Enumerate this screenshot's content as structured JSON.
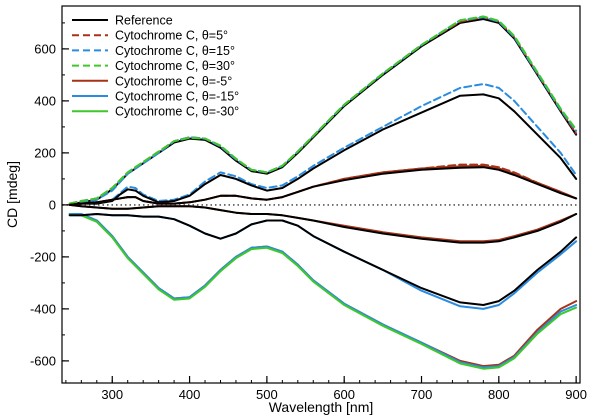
{
  "chart_data": {
    "type": "line",
    "xlabel": "Wavelength [nm]",
    "ylabel": "CD [mdeg]",
    "xlim": [
      235,
      905
    ],
    "ylim": [
      -685,
      765
    ],
    "xticks": [
      300,
      400,
      500,
      600,
      700,
      800,
      900
    ],
    "yticks": [
      -600,
      -400,
      -200,
      0,
      200,
      400,
      600
    ],
    "x_minor_step": 20,
    "y_minor_step": 100,
    "grid": false,
    "zero_line": {
      "y": 0,
      "style": "dotted",
      "color": "#555555"
    },
    "legend_position": "top-left",
    "series": [
      {
        "name": "Reference",
        "color": "#000000",
        "dash": "solid",
        "x": [
          245,
          260,
          280,
          300,
          320,
          340,
          360,
          380,
          400,
          420,
          440,
          460,
          480,
          500,
          520,
          540,
          560,
          600,
          650,
          700,
          750,
          780,
          800,
          820,
          850,
          880,
          900
        ],
        "y": [
          0,
          10,
          20,
          60,
          120,
          160,
          200,
          240,
          255,
          250,
          220,
          170,
          130,
          120,
          145,
          200,
          260,
          380,
          500,
          610,
          700,
          715,
          700,
          640,
          500,
          360,
          270
        ]
      },
      {
        "name": "Cytochrome C, θ=5°",
        "color": "#a83218",
        "dash": "dashed",
        "x": [
          245,
          260,
          280,
          300,
          320,
          340,
          360,
          380,
          400,
          420,
          440,
          460,
          480,
          500,
          520,
          540,
          560,
          600,
          650,
          700,
          750,
          780,
          800,
          820,
          850,
          880,
          900
        ],
        "y": [
          5,
          15,
          25,
          65,
          125,
          165,
          205,
          245,
          260,
          255,
          225,
          175,
          135,
          125,
          150,
          205,
          265,
          385,
          505,
          615,
          705,
          722,
          705,
          645,
          505,
          365,
          275
        ]
      },
      {
        "name": "Cytochrome C, θ=15°",
        "color": "#2a8ce0",
        "dash": "dashed",
        "x": [
          245,
          260,
          280,
          300,
          320,
          340,
          360,
          380,
          400,
          420,
          440,
          460,
          480,
          500,
          520,
          540,
          560,
          600,
          650,
          700,
          750,
          780,
          800,
          820,
          850,
          880,
          900
        ],
        "y": [
          0,
          10,
          20,
          55,
          120,
          160,
          200,
          245,
          260,
          255,
          225,
          175,
          135,
          125,
          150,
          205,
          265,
          385,
          505,
          615,
          710,
          722,
          705,
          645,
          505,
          365,
          285
        ]
      },
      {
        "name": "Cytochrome C, θ=30°",
        "color": "#3ec82a",
        "dash": "dashed",
        "x": [
          245,
          260,
          280,
          300,
          320,
          340,
          360,
          380,
          400,
          420,
          440,
          460,
          480,
          500,
          520,
          540,
          560,
          600,
          650,
          700,
          750,
          780,
          800,
          820,
          850,
          880,
          900
        ],
        "y": [
          5,
          15,
          25,
          65,
          125,
          165,
          205,
          245,
          258,
          255,
          228,
          178,
          135,
          125,
          150,
          205,
          265,
          385,
          505,
          615,
          710,
          725,
          708,
          650,
          510,
          370,
          290
        ]
      },
      {
        "name": "Cytochrome C, θ=-5°",
        "color": "#a83218",
        "dash": "solid",
        "x": [
          245,
          260,
          280,
          300,
          320,
          340,
          360,
          380,
          400,
          420,
          440,
          460,
          480,
          500,
          520,
          540,
          560,
          600,
          650,
          700,
          750,
          780,
          800,
          820,
          850,
          880,
          900
        ],
        "y": [
          -35,
          -35,
          -60,
          -120,
          -200,
          -260,
          -320,
          -360,
          -355,
          -310,
          -250,
          -200,
          -165,
          -160,
          -180,
          -230,
          -290,
          -380,
          -460,
          -530,
          -600,
          -620,
          -615,
          -580,
          -480,
          -400,
          -370
        ]
      },
      {
        "name": "Cytochrome C, θ=-15°",
        "color": "#2a8ce0",
        "dash": "solid",
        "x": [
          245,
          260,
          280,
          300,
          320,
          340,
          360,
          380,
          400,
          420,
          440,
          460,
          480,
          500,
          520,
          540,
          560,
          600,
          650,
          700,
          750,
          780,
          800,
          820,
          850,
          880,
          900
        ],
        "y": [
          -35,
          -35,
          -60,
          -120,
          -200,
          -260,
          -320,
          -360,
          -355,
          -310,
          -250,
          -200,
          -165,
          -160,
          -180,
          -230,
          -290,
          -380,
          -460,
          -530,
          -605,
          -625,
          -620,
          -585,
          -490,
          -410,
          -385
        ]
      },
      {
        "name": "Cytochrome C, θ=-30°",
        "color": "#3ec82a",
        "dash": "solid",
        "x": [
          245,
          260,
          280,
          300,
          320,
          340,
          360,
          380,
          400,
          420,
          440,
          460,
          480,
          500,
          520,
          540,
          560,
          600,
          650,
          700,
          750,
          780,
          800,
          820,
          850,
          880,
          900
        ],
        "y": [
          -38,
          -40,
          -65,
          -125,
          -205,
          -265,
          -325,
          -365,
          -360,
          -315,
          -255,
          -205,
          -170,
          -165,
          -185,
          -235,
          -295,
          -385,
          -465,
          -535,
          -610,
          -630,
          -625,
          -590,
          -495,
          -420,
          -395
        ]
      },
      {
        "name": "",
        "color": "#2a8ce0",
        "dash": "dashed",
        "x": [
          245,
          260,
          280,
          300,
          310,
          320,
          330,
          340,
          360,
          380,
          400,
          420,
          440,
          460,
          480,
          500,
          520,
          540,
          560,
          600,
          650,
          700,
          750,
          780,
          800,
          820,
          850,
          880,
          900
        ],
        "y": [
          0,
          5,
          5,
          20,
          45,
          70,
          65,
          40,
          15,
          20,
          40,
          90,
          125,
          110,
          80,
          65,
          75,
          110,
          150,
          220,
          300,
          380,
          450,
          465,
          450,
          400,
          300,
          200,
          115
        ]
      },
      {
        "name": "",
        "color": "#000000",
        "dash": "solid",
        "x": [
          245,
          260,
          280,
          300,
          310,
          320,
          330,
          340,
          360,
          380,
          400,
          420,
          440,
          460,
          480,
          500,
          520,
          540,
          560,
          600,
          650,
          700,
          750,
          780,
          800,
          820,
          850,
          880,
          900
        ],
        "y": [
          0,
          5,
          5,
          15,
          40,
          60,
          55,
          35,
          10,
          15,
          35,
          80,
          115,
          100,
          75,
          55,
          65,
          100,
          140,
          210,
          290,
          355,
          420,
          425,
          410,
          360,
          270,
          180,
          100
        ]
      },
      {
        "name": "",
        "color": "#2a8ce0",
        "dash": "solid",
        "x": [
          245,
          260,
          280,
          300,
          320,
          340,
          360,
          380,
          400,
          420,
          440,
          460,
          480,
          500,
          520,
          540,
          560,
          600,
          650,
          700,
          750,
          780,
          800,
          820,
          850,
          880,
          900
        ],
        "y": [
          -40,
          -40,
          -35,
          -40,
          -40,
          -45,
          -45,
          -55,
          -80,
          -110,
          -130,
          -110,
          -75,
          -60,
          -60,
          -80,
          -120,
          -180,
          -250,
          -330,
          -390,
          -400,
          -385,
          -340,
          -260,
          -190,
          -140
        ]
      },
      {
        "name": "",
        "color": "#000000",
        "dash": "solid",
        "x": [
          245,
          260,
          280,
          300,
          320,
          340,
          360,
          380,
          400,
          420,
          440,
          460,
          480,
          500,
          520,
          540,
          560,
          600,
          650,
          700,
          750,
          780,
          800,
          820,
          850,
          880,
          900
        ],
        "y": [
          -40,
          -40,
          -35,
          -40,
          -40,
          -45,
          -45,
          -55,
          -80,
          -110,
          -130,
          -110,
          -75,
          -60,
          -60,
          -80,
          -120,
          -180,
          -250,
          -320,
          -375,
          -385,
          -370,
          -330,
          -250,
          -180,
          -125
        ]
      },
      {
        "name": "",
        "color": "#a83218",
        "dash": "dashed",
        "x": [
          245,
          260,
          280,
          300,
          320,
          330,
          340,
          360,
          380,
          400,
          420,
          440,
          460,
          480,
          500,
          520,
          540,
          560,
          600,
          650,
          700,
          750,
          780,
          800,
          820,
          850,
          880,
          900
        ],
        "y": [
          0,
          5,
          10,
          20,
          30,
          30,
          15,
          5,
          5,
          10,
          20,
          35,
          35,
          25,
          20,
          30,
          50,
          70,
          100,
          125,
          140,
          155,
          155,
          145,
          125,
          85,
          50,
          25
        ]
      },
      {
        "name": "",
        "color": "#a83218",
        "dash": "solid",
        "x": [
          245,
          260,
          280,
          300,
          320,
          330,
          340,
          360,
          380,
          400,
          420,
          440,
          460,
          480,
          500,
          520,
          540,
          560,
          600,
          650,
          700,
          750,
          780,
          800,
          820,
          850,
          880,
          900
        ],
        "y": [
          0,
          5,
          10,
          20,
          30,
          30,
          15,
          5,
          5,
          10,
          20,
          35,
          35,
          25,
          20,
          30,
          50,
          70,
          100,
          125,
          140,
          148,
          150,
          140,
          120,
          85,
          50,
          25
        ]
      },
      {
        "name": "",
        "color": "#000000",
        "dash": "solid",
        "x": [
          245,
          260,
          280,
          300,
          320,
          330,
          340,
          360,
          380,
          400,
          420,
          440,
          460,
          480,
          500,
          520,
          540,
          560,
          600,
          650,
          700,
          750,
          780,
          800,
          820,
          850,
          880,
          900
        ],
        "y": [
          0,
          5,
          10,
          20,
          30,
          30,
          15,
          5,
          5,
          10,
          20,
          35,
          35,
          25,
          20,
          30,
          50,
          70,
          95,
          120,
          135,
          143,
          145,
          135,
          115,
          80,
          45,
          25
        ]
      },
      {
        "name": "",
        "color": "#a83218",
        "dash": "solid",
        "x": [
          245,
          260,
          280,
          300,
          320,
          340,
          360,
          380,
          400,
          420,
          440,
          460,
          480,
          500,
          520,
          540,
          560,
          600,
          650,
          700,
          750,
          780,
          800,
          820,
          850,
          880,
          900
        ],
        "y": [
          0,
          -5,
          -10,
          -15,
          -15,
          -10,
          -5,
          -5,
          -5,
          -10,
          -20,
          -30,
          -35,
          -35,
          -40,
          -50,
          -60,
          -80,
          -105,
          -125,
          -140,
          -140,
          -135,
          -120,
          -95,
          -60,
          -35
        ]
      },
      {
        "name": "",
        "color": "#000000",
        "dash": "solid",
        "x": [
          245,
          260,
          280,
          300,
          320,
          340,
          360,
          380,
          400,
          420,
          440,
          460,
          480,
          500,
          520,
          540,
          560,
          600,
          650,
          700,
          750,
          780,
          800,
          820,
          850,
          880,
          900
        ],
        "y": [
          0,
          -5,
          -10,
          -15,
          -15,
          -10,
          -5,
          -5,
          -5,
          -10,
          -20,
          -30,
          -35,
          -35,
          -40,
          -50,
          -60,
          -85,
          -110,
          -130,
          -145,
          -145,
          -140,
          -125,
          -100,
          -65,
          -35
        ]
      }
    ]
  }
}
